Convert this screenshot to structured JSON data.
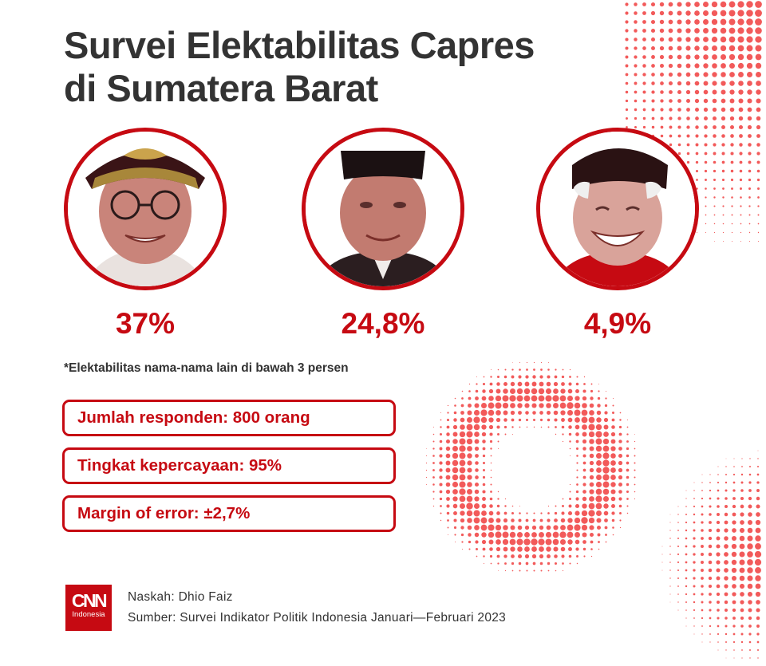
{
  "title_line1": "Survei Elektabilitas Capres",
  "title_line2": "di Sumatera Barat",
  "chart_data": {
    "type": "bar",
    "title": "Survei Elektabilitas Capres di Sumatera Barat",
    "unit": "%",
    "values": [
      37,
      24.8,
      4.9
    ],
    "value_labels": [
      "37%",
      "24,8%",
      "4,9%"
    ]
  },
  "footnote": "*Elektabilitas nama-nama lain di bawah 3 persen",
  "info": {
    "respondents": "Jumlah responden: 800 orang",
    "confidence": "Tingkat kepercayaan: 95%",
    "margin": "Margin of error: ±2,7%"
  },
  "logo": {
    "cnn": "CNN",
    "indonesia": "Indonesia"
  },
  "credits": {
    "writer": "Naskah: Dhio Faiz",
    "source": "Sumber: Survei Indikator Politik Indonesia Januari—Februari 2023"
  },
  "colors": {
    "accent": "#c60a12",
    "title": "#333333",
    "dots": "#f25a5a"
  }
}
